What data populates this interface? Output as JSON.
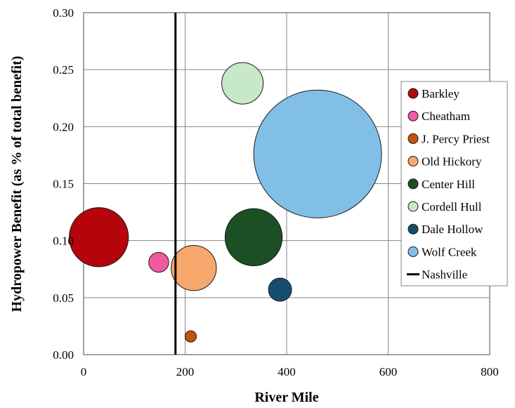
{
  "chart_data": {
    "type": "scatter",
    "subtype": "bubble",
    "xlabel": "River Mile",
    "ylabel": "Hydropower Benefit (as % of total benefit)",
    "xlim": [
      0,
      800
    ],
    "ylim": [
      0,
      0.3
    ],
    "xticks": [
      "0",
      "200",
      "400",
      "600",
      "800"
    ],
    "yticks": [
      "0.00",
      "0.05",
      "0.10",
      "0.15",
      "0.20",
      "0.25",
      "0.30"
    ],
    "grid": true,
    "legend_position": "right",
    "series": [
      {
        "name": "Barkley",
        "x": 30,
        "y": 0.103,
        "size": 6.0,
        "color": "#b5050b"
      },
      {
        "name": "Cheatham",
        "x": 148,
        "y": 0.081,
        "size": 0.68,
        "color": "#f05aa0"
      },
      {
        "name": "J. Percy Priest",
        "x": 211,
        "y": 0.016,
        "size": 0.22,
        "color": "#c4520a"
      },
      {
        "name": "Old Hickory",
        "x": 217,
        "y": 0.076,
        "size": 3.5,
        "color": "#f7a86c"
      },
      {
        "name": "Center Hill",
        "x": 335,
        "y": 0.103,
        "size": 5.6,
        "color": "#1d4f24"
      },
      {
        "name": "Cordell Hull",
        "x": 313,
        "y": 0.238,
        "size": 2.95,
        "color": "#c7e8c9"
      },
      {
        "name": "Dale Hollow",
        "x": 387,
        "y": 0.057,
        "size": 0.92,
        "color": "#164d6e"
      },
      {
        "name": "Wolf Creek",
        "x": 461,
        "y": 0.176,
        "size": 28.0,
        "color": "#81bfe6"
      }
    ],
    "reference_lines": [
      {
        "name": "Nashville",
        "x": 181,
        "color": "#000000"
      }
    ]
  }
}
